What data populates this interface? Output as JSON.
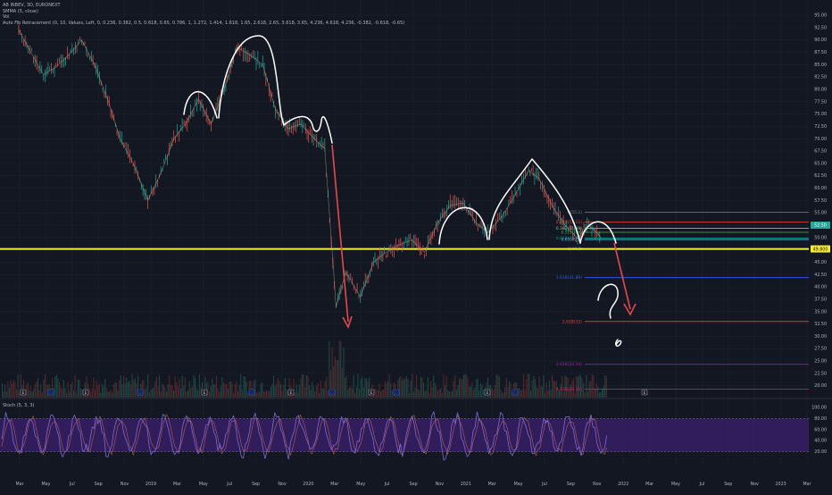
{
  "legend": {
    "symbol_line": "AB INBEV, 3D, EURONEXT",
    "sma_line": "SMMA (5, close)",
    "vol_line": "Vol",
    "fib_line": "Auto Fib Retracement (0, 10, Values, Left, 0, 0.236, 0.382, 0.5, 0.618, 0.65, 0.786, 1, 1.272, 1.414, 1.618, 1.65, 2.618, 2.65, 3.618, 3.65, 4.236, 4.618, 4.236, -0.382, -0.618, -0.65)"
  },
  "stoch_legend": "Stoch (5, 3, 3)",
  "colors": {
    "background": "#131722",
    "grid": "#1e222d",
    "up": "#26a69a",
    "down": "#ef5350",
    "yellow_line": "#f5ea35",
    "arrow": "#e4494c",
    "stoch_band": "#3b1f6b",
    "stoch_line": "#7b6bd6",
    "handdrawn": "#ffffff"
  },
  "chart_data": [
    {
      "type": "line",
      "title": "",
      "x_tick_labels": [
        "Mar",
        "May",
        "Jul",
        "Sep",
        "Nov",
        "2019",
        "Mar",
        "May",
        "Jul",
        "Sep",
        "Nov",
        "2020",
        "Mar",
        "May",
        "Jul",
        "Sep",
        "Nov",
        "2021",
        "Mar",
        "May",
        "Jul",
        "Sep",
        "Nov",
        "2022",
        "Mar",
        "May",
        "Jul",
        "Sep",
        "Nov",
        "2023",
        "Mar"
      ],
      "y_tick_labels": [
        "95.00",
        "92.50",
        "90.00",
        "87.50",
        "85.00",
        "82.50",
        "80.00",
        "77.50",
        "75.00",
        "72.50",
        "70.00",
        "67.50",
        "65.00",
        "62.50",
        "60.00",
        "57.50",
        "55.00",
        "52.50",
        "50.00",
        "47.50",
        "45.00",
        "42.50",
        "40.00",
        "37.50",
        "35.00",
        "32.50",
        "30.00",
        "27.50",
        "25.00",
        "22.50",
        "20.00"
      ],
      "ylim": [
        18.5,
        97
      ],
      "series": [
        {
          "values": [
            {
              "x": "2018-02-20",
              "y": 92.0
            },
            {
              "x": "2018-03-15",
              "y": 88.5
            },
            {
              "x": "2018-04-20",
              "y": 83.0
            },
            {
              "x": "2018-05-20",
              "y": 84.5
            },
            {
              "x": "2018-06-20",
              "y": 87.0
            },
            {
              "x": "2018-07-20",
              "y": 90.0
            },
            {
              "x": "2018-08-20",
              "y": 85.0
            },
            {
              "x": "2018-09-20",
              "y": 78.0
            },
            {
              "x": "2018-10-20",
              "y": 70.0
            },
            {
              "x": "2018-11-20",
              "y": 65.0
            },
            {
              "x": "2018-12-25",
              "y": 57.5
            },
            {
              "x": "2019-01-25",
              "y": 63.0
            },
            {
              "x": "2019-02-25",
              "y": 70.0
            },
            {
              "x": "2019-03-25",
              "y": 73.0
            },
            {
              "x": "2019-04-25",
              "y": 78.0
            },
            {
              "x": "2019-05-25",
              "y": 73.0
            },
            {
              "x": "2019-06-25",
              "y": 80.0
            },
            {
              "x": "2019-07-25",
              "y": 88.5
            },
            {
              "x": "2019-08-25",
              "y": 87.0
            },
            {
              "x": "2019-09-25",
              "y": 85.0
            },
            {
              "x": "2019-10-25",
              "y": 76.0
            },
            {
              "x": "2019-11-25",
              "y": 72.0
            },
            {
              "x": "2019-12-25",
              "y": 73.0
            },
            {
              "x": "2020-01-20",
              "y": 70.5
            },
            {
              "x": "2020-02-20",
              "y": 68.0
            },
            {
              "x": "2020-03-18",
              "y": 36.0
            },
            {
              "x": "2020-04-10",
              "y": 43.0
            },
            {
              "x": "2020-05-15",
              "y": 38.0
            },
            {
              "x": "2020-06-15",
              "y": 45.0
            },
            {
              "x": "2020-07-15",
              "y": 47.0
            },
            {
              "x": "2020-08-15",
              "y": 48.5
            },
            {
              "x": "2020-09-15",
              "y": 49.5
            },
            {
              "x": "2020-10-15",
              "y": 47.0
            },
            {
              "x": "2020-11-15",
              "y": 53.0
            },
            {
              "x": "2020-12-15",
              "y": 56.5
            },
            {
              "x": "2021-01-15",
              "y": 57.0
            },
            {
              "x": "2021-02-15",
              "y": 53.0
            },
            {
              "x": "2021-03-15",
              "y": 51.0
            },
            {
              "x": "2021-04-15",
              "y": 54.0
            },
            {
              "x": "2021-05-15",
              "y": 58.0
            },
            {
              "x": "2021-06-20",
              "y": 63.5
            },
            {
              "x": "2021-07-15",
              "y": 62.0
            },
            {
              "x": "2021-08-15",
              "y": 56.5
            },
            {
              "x": "2021-09-15",
              "y": 52.5
            },
            {
              "x": "2021-10-15",
              "y": 49.8
            },
            {
              "x": "2021-11-10",
              "y": 52.5
            },
            {
              "x": "2021-11-30",
              "y": 51.0
            },
            {
              "x": "2021-12-10",
              "y": 49.9
            }
          ]
        }
      ],
      "price_label": "49.800",
      "current_label": "52.50",
      "fib_levels": [
        {
          "label": "0(55.1)",
          "value": 55.1
        },
        {
          "label": "0.236(53.11)",
          "value": 53.11
        },
        {
          "label": "0.382(51.88)",
          "value": 51.88
        },
        {
          "label": "0.5(51.06)",
          "value": 51.06
        },
        {
          "label": "0.618(49.89)",
          "value": 49.89
        },
        {
          "label": "0.65(49.6)",
          "value": 49.6
        },
        {
          "label": "1(47.7)",
          "value": 47.7
        },
        {
          "label": "1.618(41.89)",
          "value": 41.89
        },
        {
          "label": "2.618(33)",
          "value": 33.0
        },
        {
          "label": "3.618(24.34)",
          "value": 24.34
        },
        {
          "label": "4.236(19.31)",
          "value": 19.31
        }
      ],
      "horizontal_support": 47.7,
      "event_markers": [
        "E",
        "D",
        "E",
        "D",
        "E",
        "D",
        "E",
        "D",
        "E",
        "D",
        "E",
        "D",
        "E",
        "D",
        "E"
      ]
    },
    {
      "type": "line",
      "title": "",
      "y_tick_labels": [
        "100.00",
        "80.00",
        "60.00",
        "40.00",
        "20.00"
      ],
      "ylim": [
        0,
        100
      ],
      "band": [
        20,
        80
      ],
      "series": [
        {
          "values": "oscillating stochastic values between 5 and 95"
        }
      ]
    }
  ]
}
